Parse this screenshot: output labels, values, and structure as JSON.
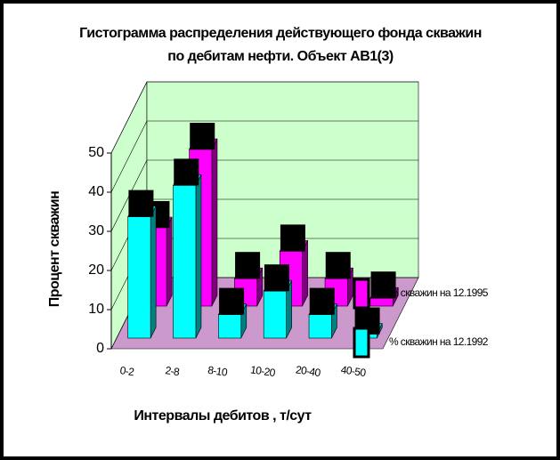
{
  "chart_data": {
    "type": "bar3d",
    "title": "Гистограмма распределения действующего фонда скважин по дебитам нефти. Объект АВ1(3)",
    "x_label": "Интервалы дебитов , т/сут",
    "y_label": "Процент скважин",
    "categories": [
      "0-2",
      "2-8",
      "8-10",
      "10-20",
      "20-40",
      "40-50"
    ],
    "series": [
      {
        "name": "% скважин на 12.1995",
        "color": "#ff00ff",
        "values": [
          20,
          40,
          7,
          14,
          7,
          2
        ]
      },
      {
        "name": "% скважин на 12.1992",
        "color": "#00ffff",
        "values": [
          31,
          39,
          6,
          12,
          6,
          1
        ]
      }
    ],
    "ylim": [
      0,
      50
    ],
    "yticks": [
      0,
      10,
      20,
      30,
      40,
      50
    ],
    "grid": true,
    "legend": "right"
  }
}
